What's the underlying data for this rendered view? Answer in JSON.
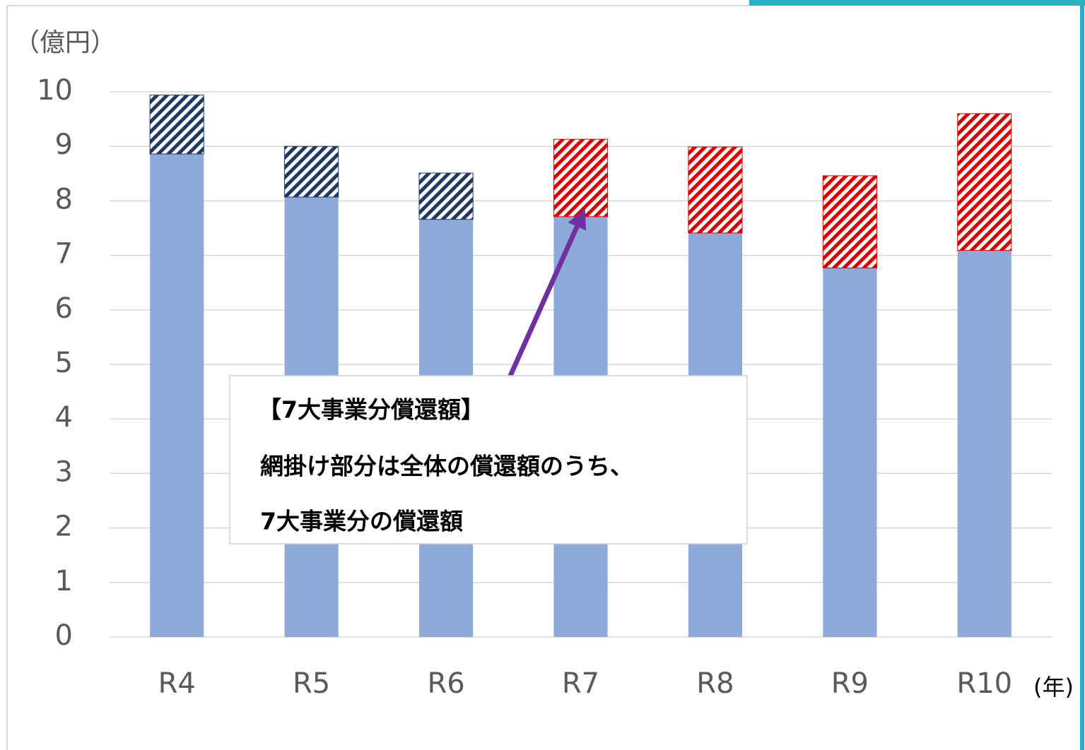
{
  "chart_data": {
    "type": "bar",
    "stacked": true,
    "y_axis_label": "（億円）",
    "x_axis_label": "(年)",
    "categories": [
      "R4",
      "R5",
      "R6",
      "R7",
      "R8",
      "R9",
      "R10"
    ],
    "series": [
      {
        "color": "#8eaadb",
        "values": [
          8.86,
          8.07,
          7.66,
          7.71,
          7.41,
          6.77,
          7.09
        ]
      },
      {
        "hatched": true,
        "colors": [
          "#203864",
          "#203864",
          "#203864",
          "#e00000",
          "#e00000",
          "#e00000",
          "#e00000"
        ],
        "values": [
          1.08,
          0.93,
          0.85,
          1.42,
          1.58,
          1.69,
          2.51
        ]
      }
    ],
    "ylim": [
      0,
      10
    ],
    "yticks": [
      0,
      1,
      2,
      3,
      4,
      5,
      6,
      7,
      8,
      9,
      10
    ],
    "grid": true,
    "annotation": {
      "lines": [
        "【7大事業分償還額】",
        "網掛け部分は全体の償還額のうち、",
        "7大事業分の償還額"
      ],
      "arrow_color": "#7030a0"
    }
  }
}
